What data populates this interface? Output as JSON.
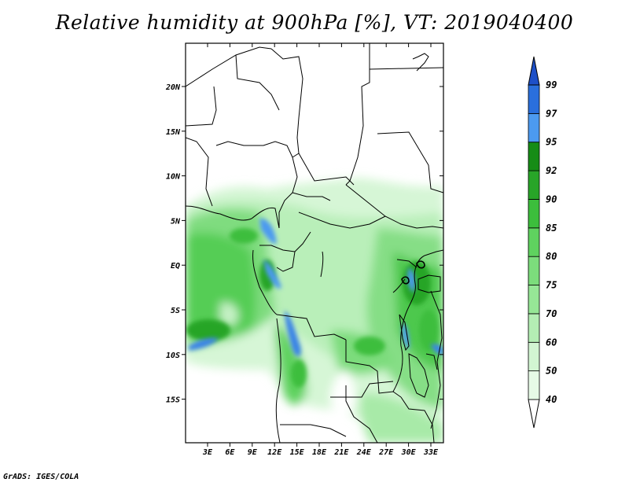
{
  "title": "Relative humidity at 900hPa [%], VT: 2019040400",
  "credit": "GrADS: IGES/COLA",
  "map": {
    "variable": "Relative humidity",
    "level": "900hPa",
    "units": "%",
    "valid_time": "2019040400",
    "lat_labels": [
      "20N",
      "15N",
      "10N",
      "5N",
      "EQ",
      "5S",
      "10S",
      "15S"
    ],
    "lon_labels": [
      "3E",
      "6E",
      "9E",
      "12E",
      "15E",
      "18E",
      "21E",
      "24E",
      "27E",
      "30E",
      "33E"
    ]
  },
  "colorbar": {
    "levels": [
      "40",
      "50",
      "60",
      "70",
      "75",
      "80",
      "85",
      "90",
      "92",
      "95",
      "97",
      "99"
    ],
    "colors": [
      "#ffffff",
      "#e6fae6",
      "#d2f5d2",
      "#b4eeb4",
      "#96e696",
      "#7cdc7c",
      "#5fd25f",
      "#3cbe3c",
      "#28a528",
      "#168c16",
      "#4c9af0",
      "#2a6fdc",
      "#1e50c8"
    ]
  }
}
